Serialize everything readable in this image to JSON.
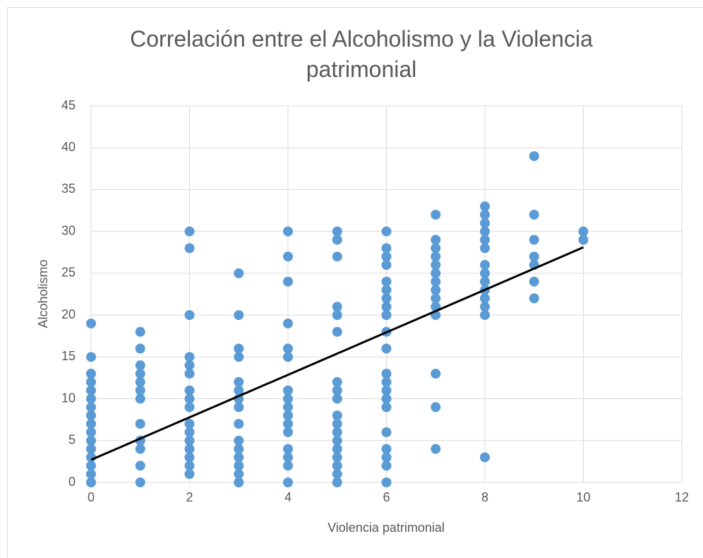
{
  "chart_data": {
    "type": "scatter",
    "title": "Correlación entre el Alcoholismo y la Violencia patrimonial",
    "x_label": "Violencia patrimonial",
    "y_label": "Alcoholismo",
    "xlim": [
      0,
      12
    ],
    "xticks": [
      0,
      2,
      4,
      6,
      8,
      10,
      12
    ],
    "ylim": [
      0,
      45
    ],
    "yticks": [
      0,
      5,
      10,
      15,
      20,
      25,
      30,
      35,
      40,
      45
    ],
    "grid": true,
    "series": [
      {
        "color": "#5b9bd5",
        "x": [
          0,
          0,
          0,
          0,
          0,
          0,
          0,
          0,
          0,
          0,
          0,
          0,
          0,
          0,
          0,
          0,
          1,
          1,
          1,
          1,
          1,
          1,
          1,
          1,
          1,
          1,
          1,
          1,
          2,
          2,
          2,
          2,
          2,
          2,
          2,
          2,
          2,
          2,
          2,
          2,
          2,
          2,
          2,
          2,
          3,
          3,
          3,
          3,
          3,
          3,
          3,
          3,
          3,
          3,
          3,
          3,
          3,
          3,
          3,
          4,
          4,
          4,
          4,
          4,
          4,
          4,
          4,
          4,
          4,
          4,
          4,
          4,
          4,
          4,
          4,
          5,
          5,
          5,
          5,
          5,
          5,
          5,
          5,
          5,
          5,
          5,
          5,
          5,
          5,
          5,
          5,
          5,
          5,
          6,
          6,
          6,
          6,
          6,
          6,
          6,
          6,
          6,
          6,
          6,
          6,
          6,
          6,
          6,
          6,
          6,
          6,
          6,
          6,
          6,
          7,
          7,
          7,
          7,
          7,
          7,
          7,
          7,
          7,
          7,
          7,
          7,
          7,
          7,
          8,
          8,
          8,
          8,
          8,
          8,
          8,
          8,
          8,
          8,
          8,
          8,
          8,
          8,
          9,
          9,
          9,
          9,
          9,
          9,
          9,
          10,
          10
        ],
        "values": [
          19,
          15,
          13,
          12,
          11,
          10,
          9,
          8,
          7,
          6,
          5,
          4,
          3,
          2,
          1,
          0,
          18,
          16,
          14,
          13,
          12,
          11,
          10,
          7,
          5,
          4,
          2,
          0,
          30,
          28,
          20,
          15,
          14,
          13,
          11,
          10,
          9,
          7,
          6,
          5,
          4,
          3,
          2,
          1,
          25,
          20,
          16,
          15,
          12,
          11,
          10,
          9,
          7,
          5,
          4,
          3,
          2,
          1,
          0,
          30,
          27,
          24,
          19,
          16,
          15,
          11,
          10,
          9,
          8,
          7,
          6,
          4,
          3,
          2,
          0,
          30,
          29,
          27,
          21,
          20,
          18,
          12,
          11,
          10,
          8,
          7,
          6,
          5,
          4,
          3,
          2,
          1,
          0,
          30,
          28,
          27,
          26,
          24,
          23,
          22,
          21,
          20,
          18,
          16,
          13,
          12,
          11,
          10,
          9,
          6,
          4,
          3,
          2,
          0,
          32,
          29,
          28,
          27,
          26,
          25,
          24,
          23,
          22,
          21,
          20,
          13,
          9,
          4,
          33,
          32,
          31,
          30,
          29,
          28,
          26,
          25,
          24,
          23,
          22,
          21,
          20,
          3,
          39,
          32,
          29,
          27,
          26,
          24,
          22,
          30,
          29
        ]
      }
    ],
    "trendline": {
      "color": "#000000",
      "x": [
        0,
        10
      ],
      "values": [
        2.7,
        28.1
      ]
    }
  }
}
